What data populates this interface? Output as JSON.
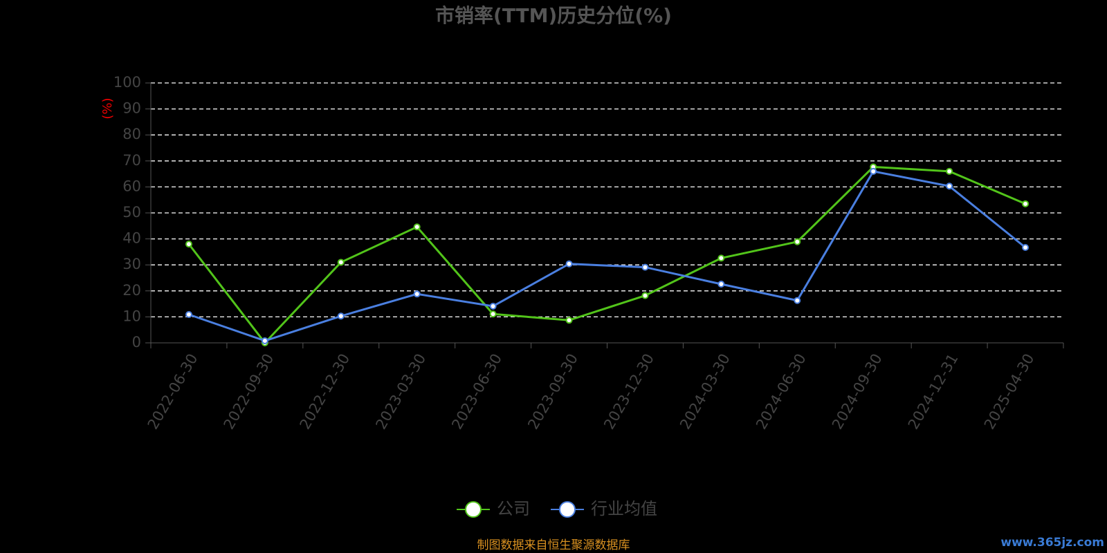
{
  "chart_data": {
    "type": "line",
    "title": "市销率(TTM)历史分位(%)",
    "y_label": "(%)",
    "categories": [
      "2022-06-30",
      "2022-09-30",
      "2022-12-30",
      "2023-03-30",
      "2023-06-30",
      "2023-09-30",
      "2023-12-30",
      "2024-03-30",
      "2024-06-30",
      "2024-09-30",
      "2024-12-31",
      "2025-04-30"
    ],
    "series": [
      {
        "name": "公司",
        "color": "#52c41a",
        "values": [
          38.0,
          0,
          31.0,
          44.6,
          11.1,
          8.7,
          18.2,
          32.6,
          38.9,
          67.7,
          66.0,
          53.5
        ]
      },
      {
        "name": "行业均值",
        "color": "#4a7fe0",
        "values": [
          10.9,
          0.8,
          10.3,
          18.8,
          14.1,
          30.4,
          29.1,
          22.6,
          16.3,
          66.0,
          60.3,
          36.7
        ]
      }
    ],
    "ylim": [
      0,
      100
    ],
    "yticks": [
      0,
      10,
      20,
      30,
      40,
      50,
      60,
      70,
      80,
      90,
      100
    ],
    "grid": true,
    "source": "制图数据来自恒生聚源数据库",
    "watermark": "www.365jz.com"
  }
}
